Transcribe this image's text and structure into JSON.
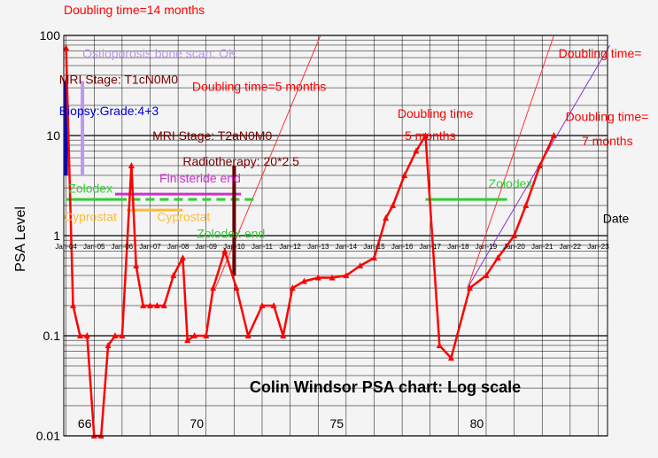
{
  "chart_data": {
    "type": "line",
    "title": "Colin Windsor PSA chart: Log scale",
    "ylabel": "PSA Level",
    "xlabel": "Date",
    "yscale": "log",
    "ylim": [
      0.01,
      100
    ],
    "xlim": [
      "2003-12",
      "2023-05"
    ],
    "grid": true,
    "colors": {
      "series": "#ff0000",
      "background": "#f4f4f4",
      "grid": "#000000"
    },
    "y_ticks": [
      {
        "value": 100,
        "label": "100"
      },
      {
        "value": 10,
        "label": "10"
      },
      {
        "value": 1,
        "label": "1"
      },
      {
        "value": 0.1,
        "label": "0.1"
      },
      {
        "value": 0.01,
        "label": "0.01"
      }
    ],
    "x_ticks": [
      {
        "date": "2004-01",
        "label": "Jan-04"
      },
      {
        "date": "2005-01",
        "label": "Jan-05"
      },
      {
        "date": "2006-01",
        "label": "Jan-06"
      },
      {
        "date": "2007-01",
        "label": "Jan-07"
      },
      {
        "date": "2008-01",
        "label": "Jan-08"
      },
      {
        "date": "2009-01",
        "label": "Jan-09"
      },
      {
        "date": "2010-01",
        "label": "Jan-10"
      },
      {
        "date": "2011-01",
        "label": "Jan-11"
      },
      {
        "date": "2012-01",
        "label": "Jan-12"
      },
      {
        "date": "2013-01",
        "label": "Jan-13"
      },
      {
        "date": "2014-01",
        "label": "Jan-14"
      },
      {
        "date": "2015-01",
        "label": "Jan-15"
      },
      {
        "date": "2016-01",
        "label": "Jan-16"
      },
      {
        "date": "2017-01",
        "label": "Jan-17"
      },
      {
        "date": "2018-01",
        "label": "Jan-18"
      },
      {
        "date": "2019-01",
        "label": "Jan-19"
      },
      {
        "date": "2020-01",
        "label": "Jan-20"
      },
      {
        "date": "2021-01",
        "label": "Jan-21"
      },
      {
        "date": "2022-01",
        "label": "Jan-22"
      },
      {
        "date": "2023-01",
        "label": "Jan-23"
      }
    ],
    "age_labels": [
      {
        "date": "2004-09",
        "label": "66"
      },
      {
        "date": "2008-09",
        "label": "70"
      },
      {
        "date": "2013-09",
        "label": "75"
      },
      {
        "date": "2018-09",
        "label": "80"
      }
    ],
    "series": [
      {
        "points": [
          {
            "x": "2004-01",
            "y": 75
          },
          {
            "x": "2004-04",
            "y": 0.2
          },
          {
            "x": "2004-07",
            "y": 0.1
          },
          {
            "x": "2004-10",
            "y": 0.1
          },
          {
            "x": "2005-01",
            "y": 0.01
          },
          {
            "x": "2005-04",
            "y": 0.01
          },
          {
            "x": "2005-07",
            "y": 0.08
          },
          {
            "x": "2005-10",
            "y": 0.1
          },
          {
            "x": "2006-01",
            "y": 0.1
          },
          {
            "x": "2006-05",
            "y": 5
          },
          {
            "x": "2006-07",
            "y": 0.5
          },
          {
            "x": "2006-10",
            "y": 0.2
          },
          {
            "x": "2007-01",
            "y": 0.2
          },
          {
            "x": "2007-04",
            "y": 0.2
          },
          {
            "x": "2007-07",
            "y": 0.2
          },
          {
            "x": "2007-11",
            "y": 0.4
          },
          {
            "x": "2008-03",
            "y": 0.6
          },
          {
            "x": "2008-05",
            "y": 0.09
          },
          {
            "x": "2008-08",
            "y": 0.1
          },
          {
            "x": "2009-01",
            "y": 0.1
          },
          {
            "x": "2009-04",
            "y": 0.3
          },
          {
            "x": "2009-09",
            "y": 0.7
          },
          {
            "x": "2010-02",
            "y": 0.3
          },
          {
            "x": "2010-07",
            "y": 0.1
          },
          {
            "x": "2011-01",
            "y": 0.2
          },
          {
            "x": "2011-06",
            "y": 0.2
          },
          {
            "x": "2011-10",
            "y": 0.1
          },
          {
            "x": "2012-02",
            "y": 0.3
          },
          {
            "x": "2012-07",
            "y": 0.35
          },
          {
            "x": "2013-01",
            "y": 0.38
          },
          {
            "x": "2013-07",
            "y": 0.38
          },
          {
            "x": "2014-01",
            "y": 0.4
          },
          {
            "x": "2014-07",
            "y": 0.5
          },
          {
            "x": "2015-01",
            "y": 0.6
          },
          {
            "x": "2015-06",
            "y": 1.5
          },
          {
            "x": "2015-09",
            "y": 2
          },
          {
            "x": "2016-02",
            "y": 4
          },
          {
            "x": "2016-07",
            "y": 7
          },
          {
            "x": "2016-11",
            "y": 10
          },
          {
            "x": "2017-05",
            "y": 0.08
          },
          {
            "x": "2017-10",
            "y": 0.06
          },
          {
            "x": "2018-06",
            "y": 0.3
          },
          {
            "x": "2019-01",
            "y": 0.4
          },
          {
            "x": "2019-06",
            "y": 0.6
          },
          {
            "x": "2020-01",
            "y": 1
          },
          {
            "x": "2020-06",
            "y": 2
          },
          {
            "x": "2020-12",
            "y": 5
          },
          {
            "x": "2021-06",
            "y": 10
          }
        ]
      }
    ],
    "fits": [
      {
        "from": {
          "x": "2009-05",
          "y": 0.3
        },
        "to": {
          "x": "2013-02",
          "y": 100
        },
        "color": "#ff3333"
      },
      {
        "from": {
          "x": "2018-05",
          "y": 0.3
        },
        "to": {
          "x": "2021-06",
          "y": 100
        },
        "color": "#ff3333"
      },
      {
        "from": {
          "x": "2018-05",
          "y": 0.3
        },
        "to": {
          "x": "2023-06",
          "y": 80
        },
        "color": "#8833cc"
      }
    ],
    "treatments": [
      {
        "label": "Zolodex",
        "color": "#33cc33",
        "dashed": false,
        "start": "2004-01",
        "end": "2006-03",
        "y": 2.3,
        "label_x": "2004-02",
        "label_y": 2.7
      },
      {
        "label": "Finisteride end",
        "color": "#cc33cc",
        "dashed": false,
        "start": "2005-10",
        "end": "2010-04",
        "y": 2.6,
        "label_x": "2007-05",
        "label_y": 3.4
      },
      {
        "label": "Cyprostat",
        "color": "#ffbb33",
        "dashed": false,
        "start": "2006-03",
        "end": "2008-03",
        "y": 1.8,
        "label_x": "2007-04",
        "label_y": 1.4
      },
      {
        "label": "Cyprostat",
        "color": "#ffbb33",
        "dashed": false,
        "start": null,
        "end": null,
        "y": null,
        "label_x": "2003-12",
        "label_y": 1.4
      },
      {
        "label": "Zolodex end",
        "color": "#33cc33",
        "dashed": true,
        "start": "2006-05",
        "end": "2010-10",
        "y": 2.3,
        "label_x": "2008-09",
        "label_y": 0.95
      },
      {
        "label": "Zolodex",
        "color": "#33cc33",
        "dashed": false,
        "start": "2016-11",
        "end": "2019-10",
        "y": 2.3,
        "label_x": "2019-02",
        "label_y": 3
      }
    ],
    "event_bars": [
      {
        "date": "2004-01",
        "low": 4,
        "high": 35,
        "color": "#0000cc"
      },
      {
        "date": "2004-08",
        "low": 4,
        "high": 35,
        "color": "#bb99ee"
      },
      {
        "date": "2010-01",
        "low": 0.4,
        "high": 5,
        "color": "#660000"
      }
    ],
    "annotations": [
      {
        "text": "Doubling time=14 months",
        "color": "#ff0000",
        "x": "2003-12",
        "y": 180
      },
      {
        "text": "Ostioporosis bone scan: OK",
        "color": "#bb99ee",
        "x": "2004-08",
        "y": 60
      },
      {
        "text": "MRI Stage: T1cN0M0",
        "color": "#770000",
        "x": "2003-10",
        "y": 33
      },
      {
        "text": "Biopsy:Grade:4+3",
        "color": "#0000cc",
        "x": "2003-10",
        "y": 16
      },
      {
        "text": "Doubling time=5 months",
        "color": "#ff0000",
        "x": "2008-07",
        "y": 28
      },
      {
        "text": "MRI Stage: T2aN0M0",
        "color": "#770000",
        "x": "2007-02",
        "y": 9
      },
      {
        "text": "Radiotherapy: 20*2.5",
        "color": "#770000",
        "x": "2008-03",
        "y": 5
      },
      {
        "text": "Doubling time",
        "color": "#ff0000",
        "x": "2015-11",
        "y": 15
      },
      {
        "text": "~5 months",
        "color": "#ff0000",
        "x": "2015-11",
        "y": 9
      },
      {
        "text": "Doubling time=",
        "color": "#ff0000",
        "x": "2021-08",
        "y": 60
      },
      {
        "text": "Doubling time=",
        "color": "#ff0000",
        "x": "2021-11",
        "y": 14
      },
      {
        "text": "7 months",
        "color": "#ff0000",
        "x": "2022-06",
        "y": 8
      },
      {
        "text": "Date",
        "color": "#000000",
        "x": "2023-03",
        "y": 1.35
      }
    ]
  }
}
